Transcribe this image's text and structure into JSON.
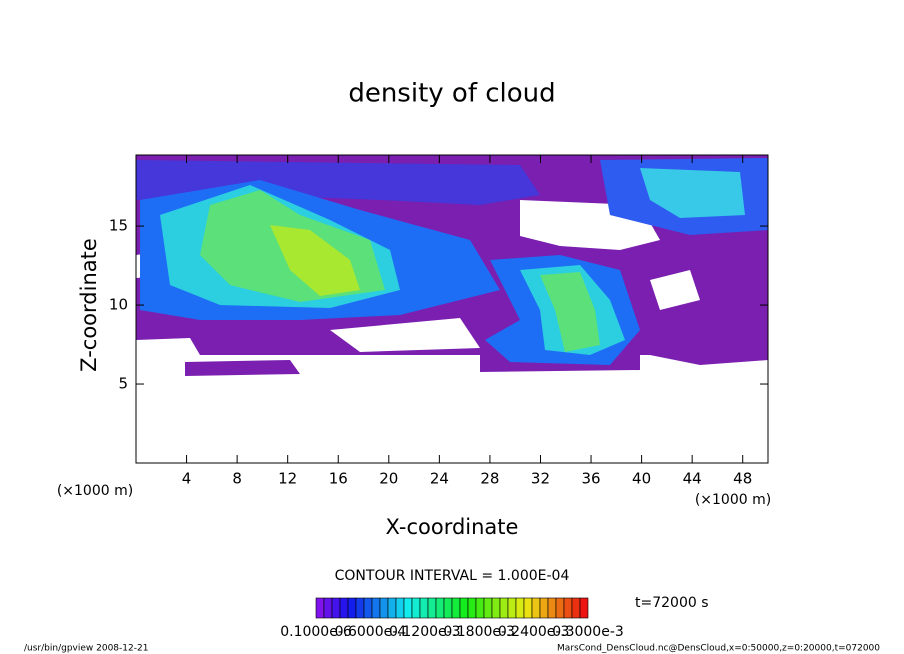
{
  "chart_data": {
    "type": "contour",
    "title": "density of cloud",
    "xlabel": "X-coordinate",
    "ylabel": "Z-coordinate",
    "xunit_left": "(×1000 m)",
    "xunit_right": "(×1000 m)",
    "xlim": [
      0,
      50
    ],
    "ylim": [
      0,
      19.5
    ],
    "xticks": [
      4,
      8,
      12,
      16,
      20,
      24,
      28,
      32,
      36,
      40,
      44,
      48
    ],
    "yticks": [
      5,
      10,
      15
    ],
    "contour_interval": "CONTOUR INTERVAL = 1.000E-04",
    "time": "t=72000 s",
    "colorbar_labels": [
      "0.1000e-6",
      "0.6000e-4",
      "0.1200e-3",
      "0.1800e-3",
      "0.2400e-3",
      "0.3000e-3"
    ],
    "footer_left": "/usr/bin/gpview   2008-12-21",
    "footer_right": "MarsCond_DensCloud.nc@DensCloud,x=0:50000,z=0:20000,t=072000"
  }
}
